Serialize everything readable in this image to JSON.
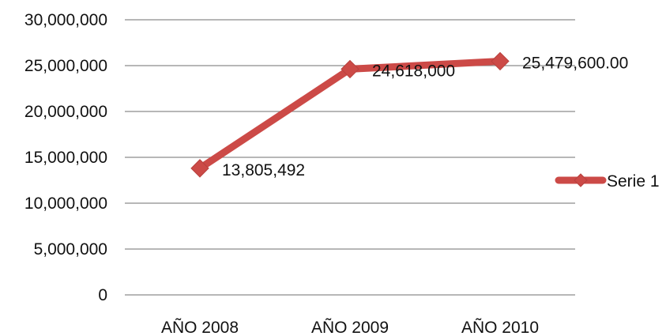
{
  "chart_data": {
    "type": "line",
    "categories": [
      "AÑO 2008",
      "AÑO 2009",
      "AÑO 2010"
    ],
    "series": [
      {
        "name": "Serie 1",
        "values": [
          13805492,
          24618000,
          25479600
        ],
        "labels": [
          "13,805,492",
          "24,618,000",
          "25,479,600.00"
        ],
        "color": "#cc4a47",
        "marker": "diamond"
      }
    ],
    "ylim": [
      0,
      30000000
    ],
    "yticks": [
      {
        "value": 0,
        "label": "0"
      },
      {
        "value": 5000000,
        "label": "5,000,000"
      },
      {
        "value": 10000000,
        "label": "10,000,000"
      },
      {
        "value": 15000000,
        "label": "15,000,000"
      },
      {
        "value": 20000000,
        "label": "20,000,000"
      },
      {
        "value": 25000000,
        "label": "25,000,000"
      },
      {
        "value": 30000000,
        "label": "30,000,000"
      }
    ],
    "grid": true,
    "legend": "right"
  }
}
